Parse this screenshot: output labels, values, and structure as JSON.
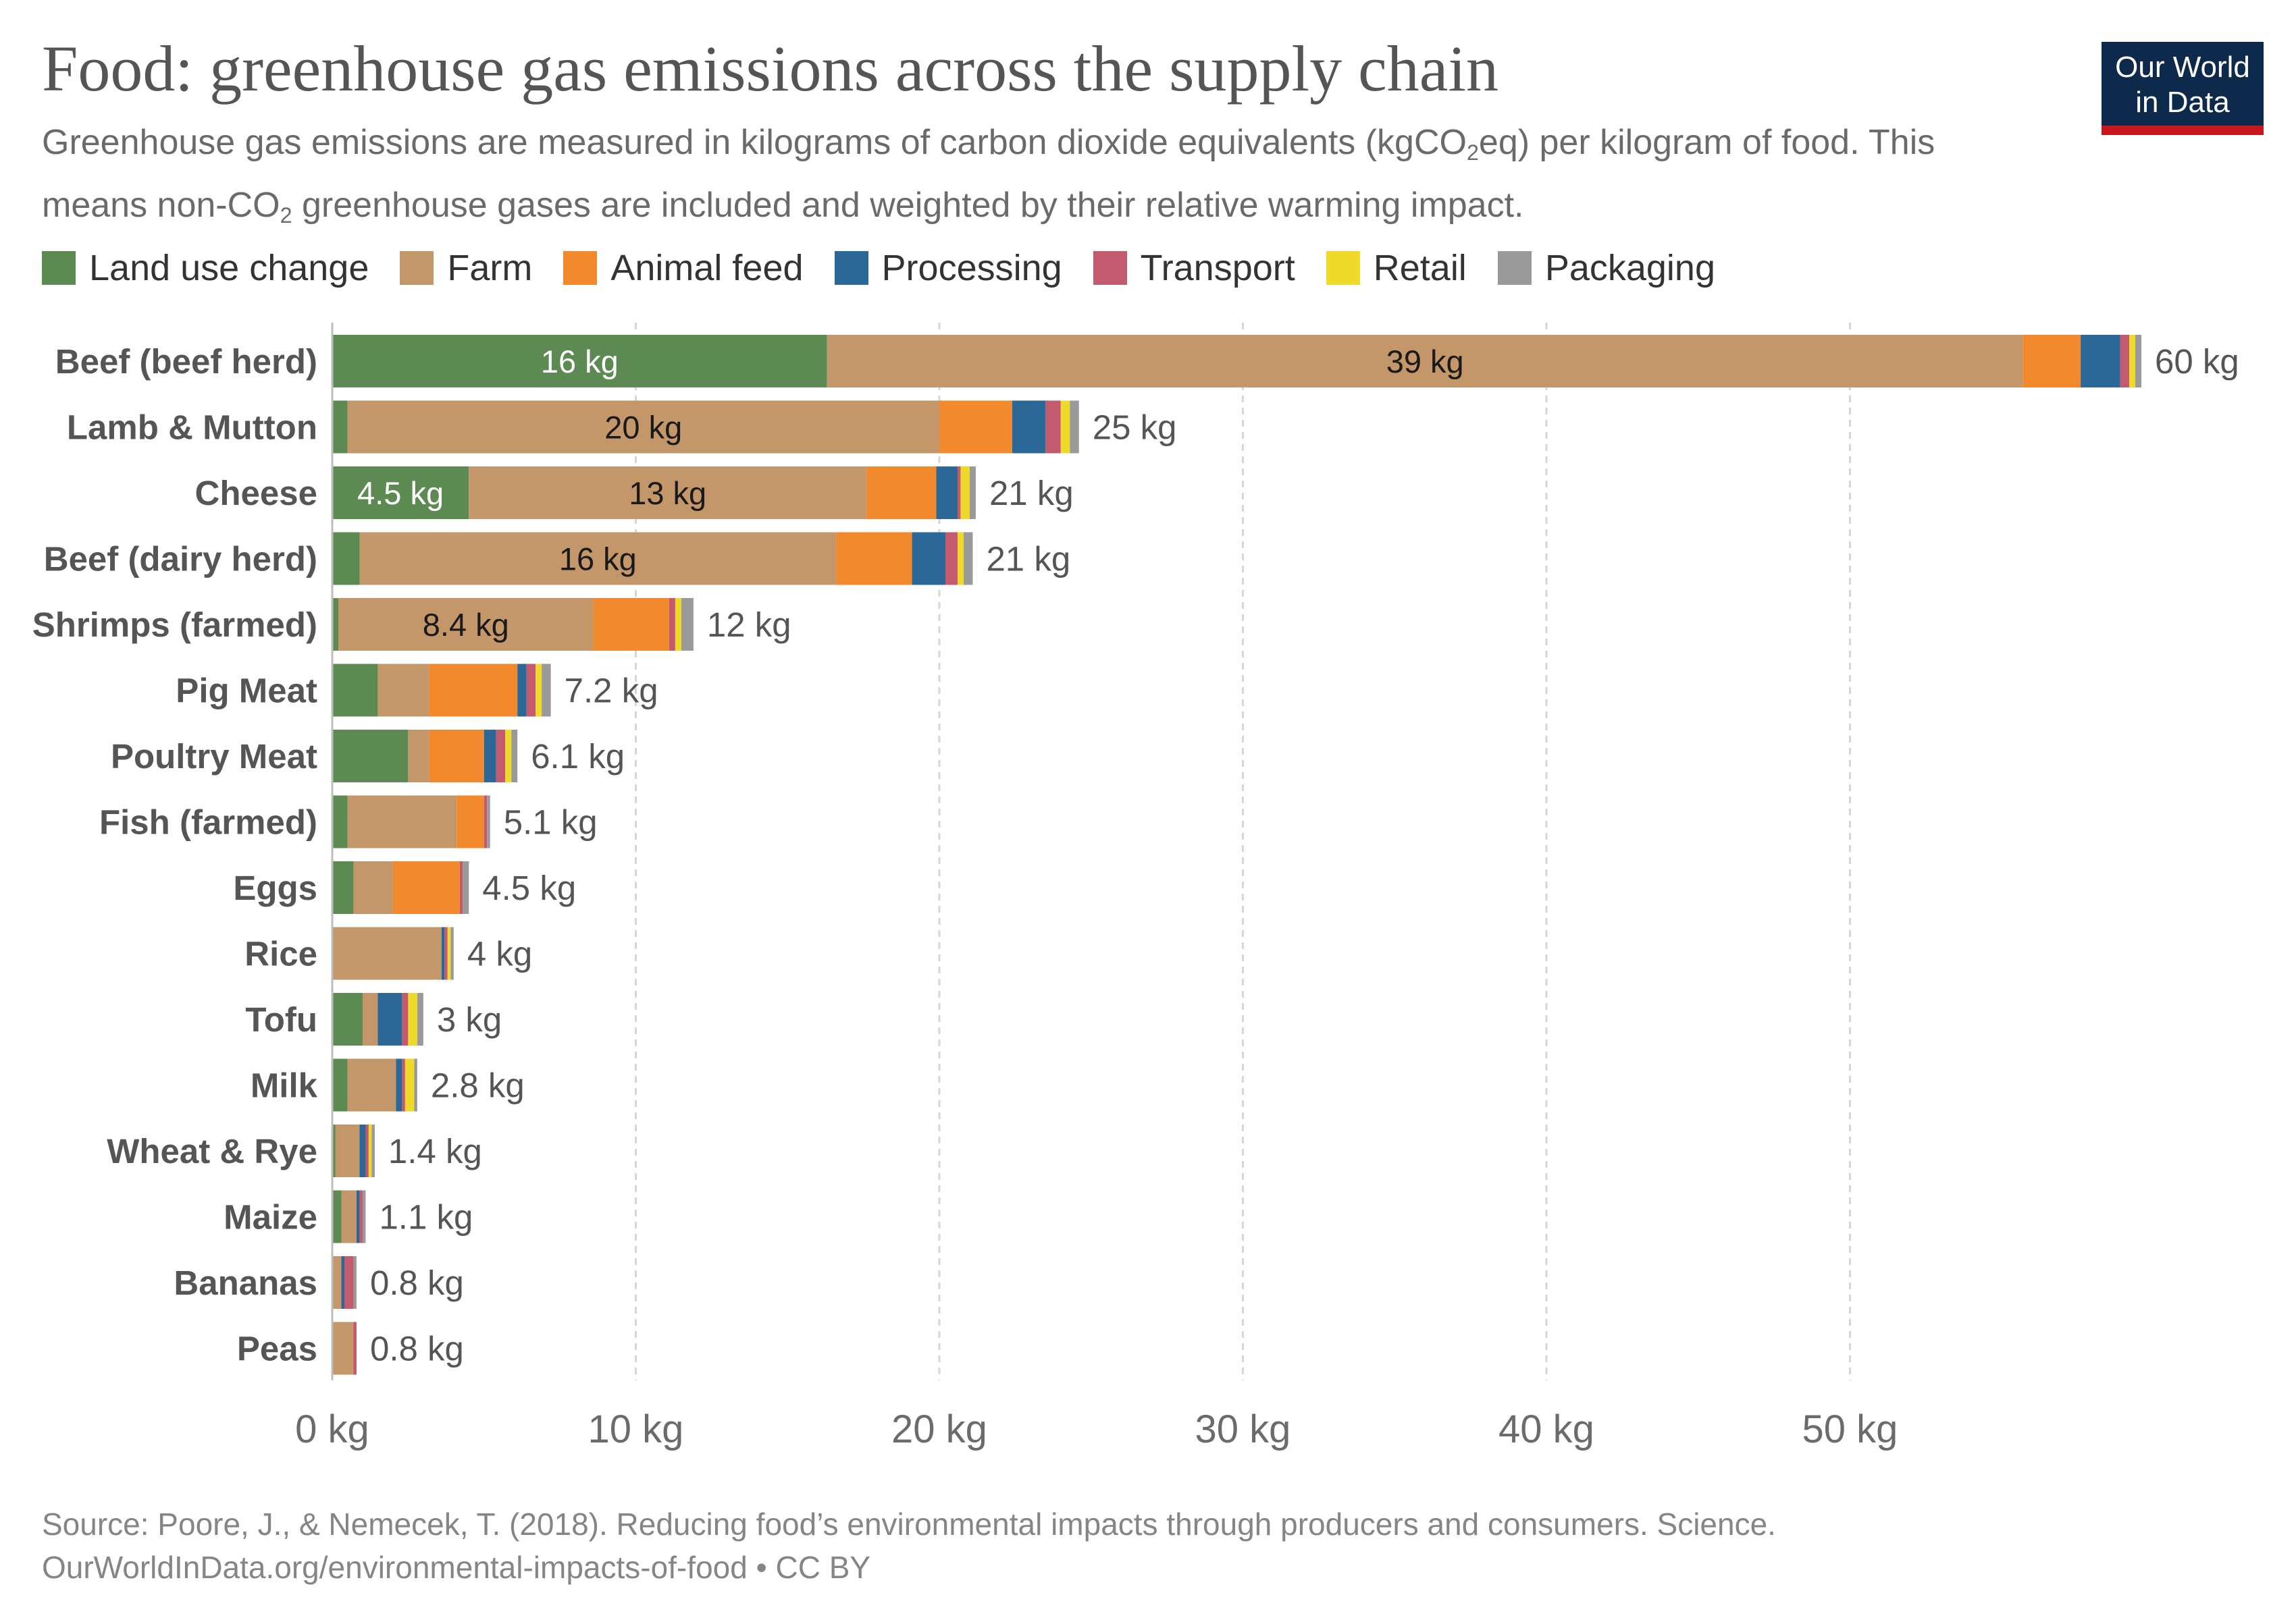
{
  "title": "Food: greenhouse gas emissions across the supply chain",
  "subtitle": {
    "part1": "Greenhouse gas emissions are measured in kilograms of carbon dioxide equivalents (kgCO",
    "sub1": "2",
    "part2": "eq) per kilogram of food. This means non-CO",
    "sub2": "2",
    "part3": " greenhouse gases are included and weighted by their relative warming impact."
  },
  "logo": {
    "line1": "Our World",
    "line2": "in Data"
  },
  "footer": {
    "source": "Source: Poore, J., & Nemecek, T. (2018). Reducing food’s environmental impacts through producers and consumers. Science.",
    "url": "OurWorldInData.org/environmental-impacts-of-food • CC BY"
  },
  "chart_data": {
    "type": "bar",
    "orientation": "horizontal",
    "stacked": true,
    "title": "Food: greenhouse gas emissions across the supply chain",
    "xlim": [
      0,
      60
    ],
    "xticks": [
      0,
      10,
      20,
      30,
      40,
      50
    ],
    "tick_unit": "kg",
    "grid": "vertical dashed",
    "legend_position": "top",
    "series_names": [
      "Land use change",
      "Farm",
      "Animal feed",
      "Processing",
      "Transport",
      "Retail",
      "Packaging"
    ],
    "colors": [
      "#5c8a52",
      "#c4976a",
      "#f28a2d",
      "#2b6797",
      "#c45a6e",
      "#efd929",
      "#9a9a9a"
    ],
    "categories": [
      "Beef (beef herd)",
      "Lamb & Mutton",
      "Cheese",
      "Beef (dairy herd)",
      "Shrimps (farmed)",
      "Pig Meat",
      "Poultry Meat",
      "Fish (farmed)",
      "Eggs",
      "Rice",
      "Tofu",
      "Milk",
      "Wheat & Rye",
      "Maize",
      "Bananas",
      "Peas"
    ],
    "values": [
      [
        16.3,
        39.4,
        1.9,
        1.3,
        0.3,
        0.2,
        0.2
      ],
      [
        0.5,
        19.5,
        2.4,
        1.1,
        0.5,
        0.3,
        0.3
      ],
      [
        4.5,
        13.1,
        2.3,
        0.7,
        0.1,
        0.3,
        0.2
      ],
      [
        0.9,
        15.7,
        2.5,
        1.1,
        0.4,
        0.2,
        0.3
      ],
      [
        0.2,
        8.4,
        2.5,
        0.0,
        0.2,
        0.2,
        0.4
      ],
      [
        1.5,
        1.7,
        2.9,
        0.3,
        0.3,
        0.2,
        0.3
      ],
      [
        2.5,
        0.7,
        1.8,
        0.4,
        0.3,
        0.2,
        0.2
      ],
      [
        0.5,
        3.6,
        0.9,
        0.0,
        0.1,
        0.0,
        0.1
      ],
      [
        0.7,
        1.3,
        2.2,
        0.0,
        0.1,
        0.0,
        0.2
      ],
      [
        0.0,
        3.6,
        0.0,
        0.1,
        0.1,
        0.1,
        0.1
      ],
      [
        1.0,
        0.5,
        0.0,
        0.8,
        0.2,
        0.3,
        0.2
      ],
      [
        0.5,
        1.6,
        0.0,
        0.2,
        0.1,
        0.3,
        0.1
      ],
      [
        0.1,
        0.8,
        0.0,
        0.2,
        0.1,
        0.1,
        0.1
      ],
      [
        0.3,
        0.5,
        0.0,
        0.1,
        0.1,
        0.0,
        0.1
      ],
      [
        0.0,
        0.3,
        0.0,
        0.1,
        0.3,
        0.0,
        0.1
      ],
      [
        0.0,
        0.7,
        0.0,
        0.0,
        0.1,
        0.0,
        0.0
      ]
    ],
    "segment_labels": [
      [
        "16 kg",
        "39 kg",
        "",
        "",
        "",
        "",
        ""
      ],
      [
        "",
        "20 kg",
        "",
        "",
        "",
        "",
        ""
      ],
      [
        "4.5 kg",
        "13 kg",
        "",
        "",
        "",
        "",
        ""
      ],
      [
        "",
        "16 kg",
        "",
        "",
        "",
        "",
        ""
      ],
      [
        "",
        "8.4 kg",
        "",
        "",
        "",
        "",
        ""
      ],
      [
        "",
        "",
        "",
        "",
        "",
        "",
        ""
      ],
      [
        "",
        "",
        "",
        "",
        "",
        "",
        ""
      ],
      [
        "",
        "",
        "",
        "",
        "",
        "",
        ""
      ],
      [
        "",
        "",
        "",
        "",
        "",
        "",
        ""
      ],
      [
        "",
        "",
        "",
        "",
        "",
        "",
        ""
      ],
      [
        "",
        "",
        "",
        "",
        "",
        "",
        ""
      ],
      [
        "",
        "",
        "",
        "",
        "",
        "",
        ""
      ],
      [
        "",
        "",
        "",
        "",
        "",
        "",
        ""
      ],
      [
        "",
        "",
        "",
        "",
        "",
        "",
        ""
      ],
      [
        "",
        "",
        "",
        "",
        "",
        "",
        ""
      ],
      [
        "",
        "",
        "",
        "",
        "",
        "",
        ""
      ]
    ],
    "totals": [
      60,
      25,
      21,
      21,
      12,
      7.2,
      6.1,
      5.1,
      4.5,
      4,
      3,
      2.8,
      1.4,
      1.1,
      0.8,
      0.8
    ],
    "total_labels": [
      "60 kg",
      "25 kg",
      "21 kg",
      "21 kg",
      "12 kg",
      "7.2 kg",
      "6.1 kg",
      "5.1 kg",
      "4.5 kg",
      "4 kg",
      "3 kg",
      "2.8 kg",
      "1.4 kg",
      "1.1 kg",
      "0.8 kg",
      "0.8 kg"
    ],
    "tick_labels": [
      "0 kg",
      "10 kg",
      "20 kg",
      "30 kg",
      "40 kg",
      "50 kg"
    ]
  }
}
